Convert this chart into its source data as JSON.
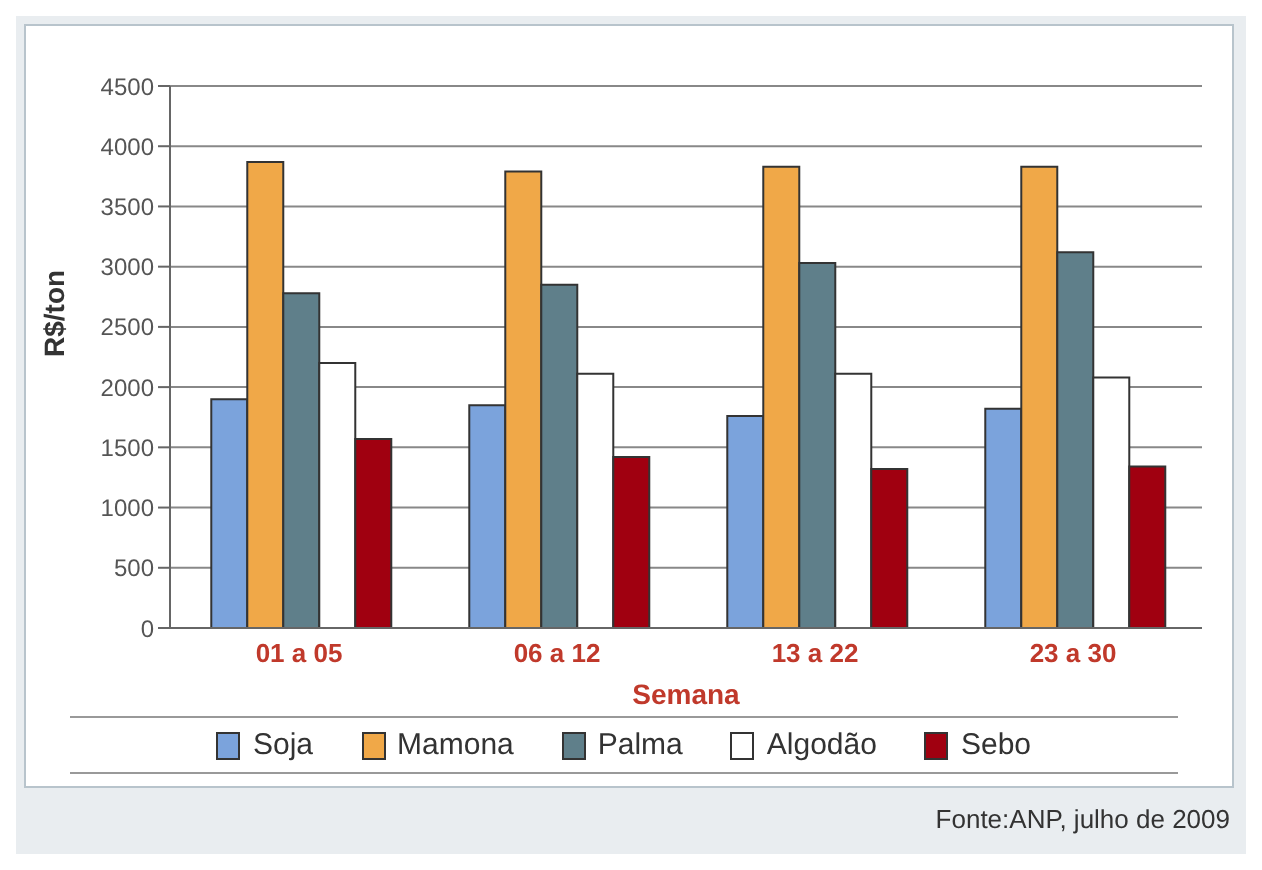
{
  "chart_data": {
    "type": "bar",
    "categories": [
      "01 a 05",
      "06 a 12",
      "13 a 22",
      "23 a 30"
    ],
    "series": [
      {
        "name": "Soja",
        "color": "#7ba3dc",
        "values": [
          1900,
          1850,
          1760,
          1820
        ]
      },
      {
        "name": "Mamona",
        "color": "#f0a848",
        "values": [
          3870,
          3790,
          3830,
          3830
        ]
      },
      {
        "name": "Palma",
        "color": "#5f7f8a",
        "values": [
          2780,
          2850,
          3030,
          3120
        ]
      },
      {
        "name": "Algodão",
        "color": "#ffffff",
        "values": [
          2200,
          2110,
          2110,
          2080
        ]
      },
      {
        "name": "Sebo",
        "color": "#a00010",
        "values": [
          1570,
          1420,
          1320,
          1340
        ]
      }
    ],
    "xlabel": "Semana",
    "ylabel": "R$/ton",
    "ylim": [
      0,
      4500
    ],
    "yticks": [
      0,
      500,
      1000,
      1500,
      2000,
      2500,
      3000,
      3500,
      4000,
      4500
    ],
    "grid": "y",
    "legend": "bottom",
    "annotations": [
      "Fonte:ANP, julho de 2009"
    ]
  }
}
